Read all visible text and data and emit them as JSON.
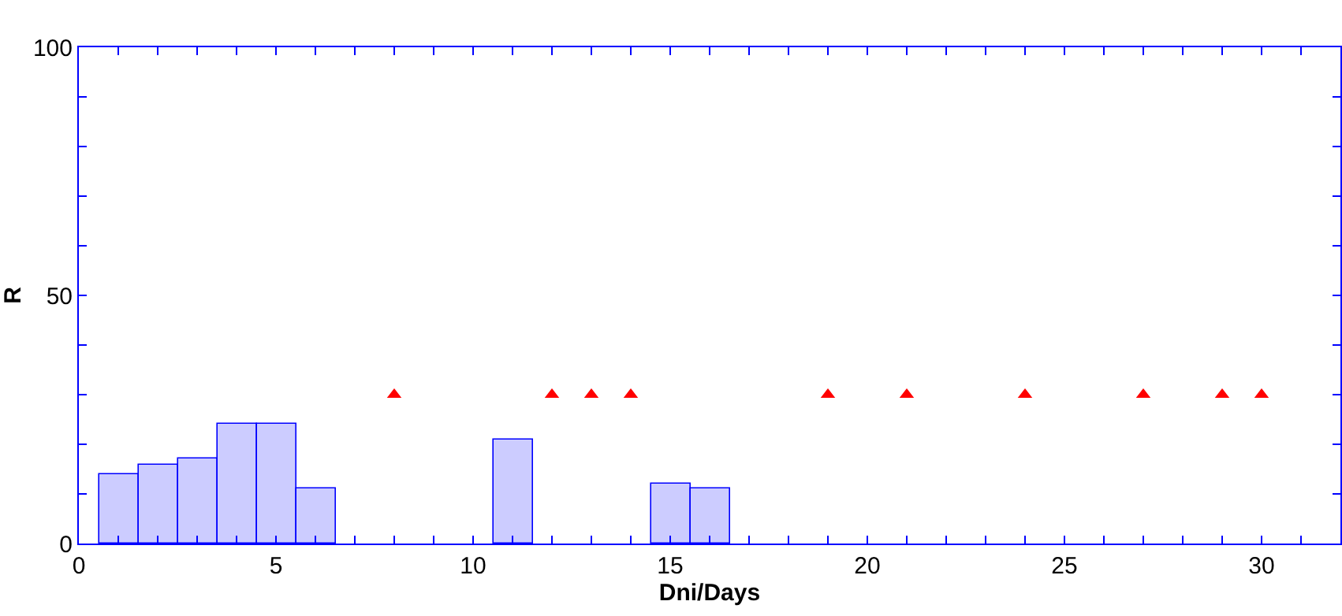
{
  "chart_data": {
    "type": "bar",
    "xlabel": "Dni/Days",
    "ylabel": "R",
    "series": [
      {
        "color": "#ccccff",
        "x": [
          1,
          2,
          3,
          4,
          5,
          6,
          11,
          15,
          16
        ],
        "values": [
          14,
          16,
          17,
          24,
          24,
          11,
          21,
          12,
          11
        ]
      },
      {
        "type": "scatter",
        "color": "#ff0000",
        "marker": "triangle",
        "x": [
          8,
          12,
          13,
          14,
          19,
          21,
          24,
          27,
          29,
          30
        ],
        "values": [
          30,
          30,
          30,
          30,
          30,
          30,
          30,
          30,
          30,
          30
        ]
      }
    ],
    "xlim": [
      0,
      32
    ],
    "ylim": [
      0,
      100
    ],
    "xticks": [
      0,
      {
        "value": 1,
        "label": null
      },
      {
        "value": 2,
        "label": null
      },
      {
        "value": 3,
        "label": null
      },
      {
        "value": 4,
        "label": null
      },
      5,
      {
        "value": 6,
        "label": null
      },
      {
        "value": 7,
        "label": null
      },
      {
        "value": 8,
        "label": null
      },
      {
        "value": 9,
        "label": null
      },
      10,
      {
        "value": 11,
        "label": null
      },
      {
        "value": 12,
        "label": null
      },
      {
        "value": 13,
        "label": null
      },
      {
        "value": 14,
        "label": null
      },
      15,
      {
        "value": 16,
        "label": null
      },
      {
        "value": 17,
        "label": null
      },
      {
        "value": 18,
        "label": null
      },
      {
        "value": 19,
        "label": null
      },
      20,
      {
        "value": 21,
        "label": null
      },
      {
        "value": 22,
        "label": null
      },
      {
        "value": 23,
        "label": null
      },
      {
        "value": 24,
        "label": null
      },
      25,
      {
        "value": 26,
        "label": null
      },
      {
        "value": 27,
        "label": null
      },
      {
        "value": 28,
        "label": null
      },
      {
        "value": 29,
        "label": null
      },
      30,
      {
        "value": 31,
        "label": null
      }
    ],
    "yticks": [
      0,
      {
        "value": 10,
        "label": null
      },
      {
        "value": 20,
        "label": null
      },
      {
        "value": 30,
        "label": null
      },
      {
        "value": 40,
        "label": null
      },
      50,
      {
        "value": 60,
        "label": null
      },
      {
        "value": 70,
        "label": null
      },
      {
        "value": 80,
        "label": null
      },
      {
        "value": 90,
        "label": null
      },
      100
    ]
  }
}
